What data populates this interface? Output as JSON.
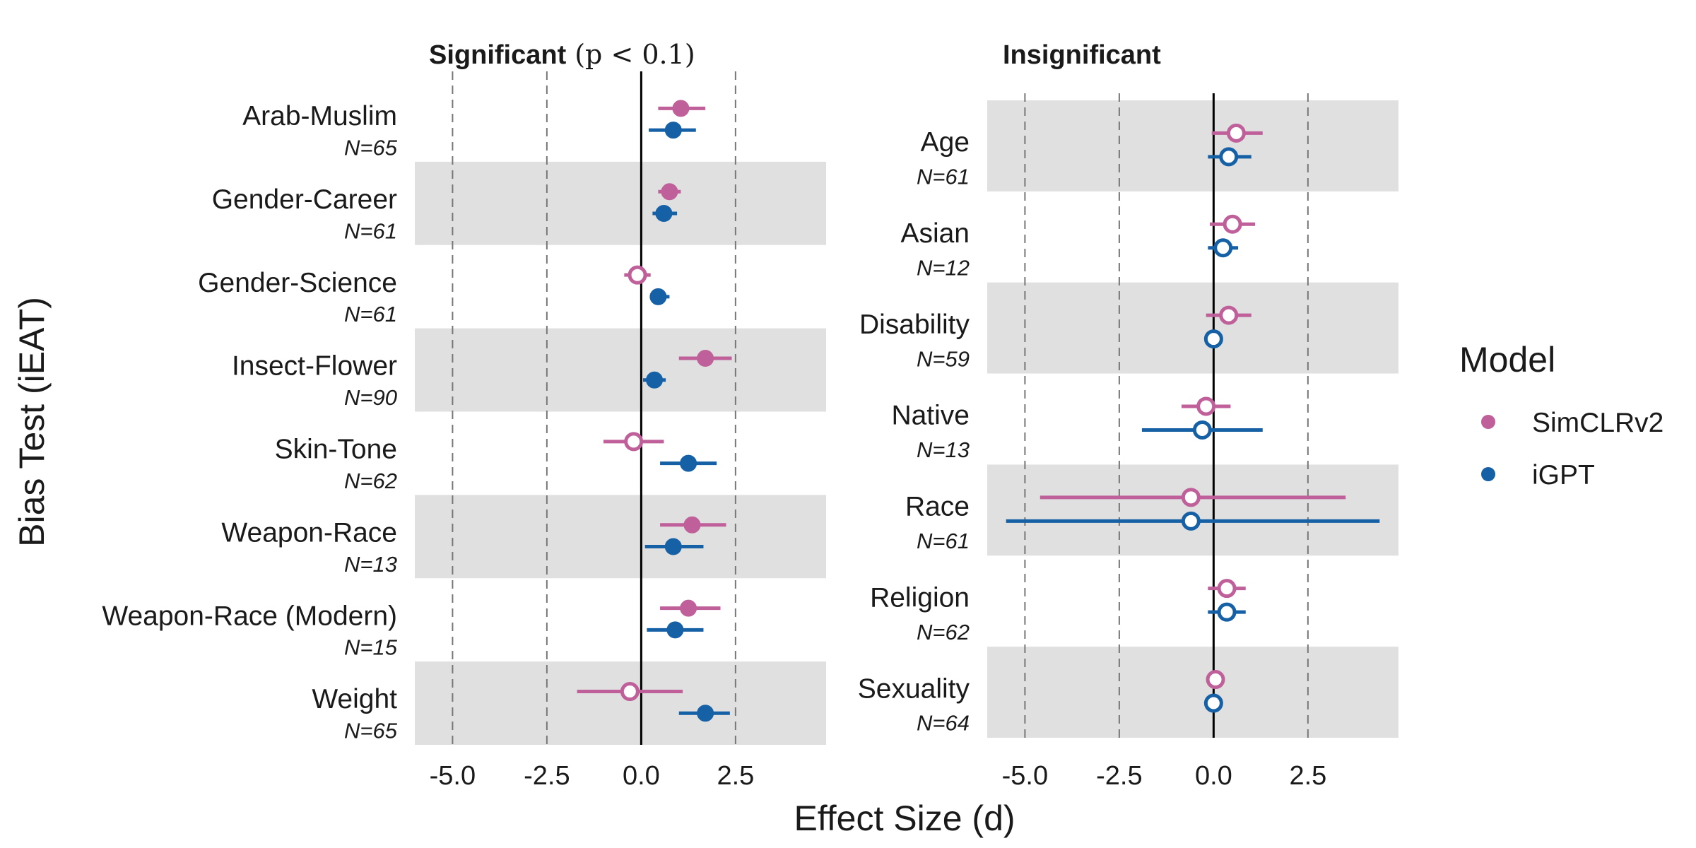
{
  "axis": {
    "ylabel": "Bias Test (iEAT)",
    "xlabel": "Effect Size (d)",
    "xlim": [
      -6.0,
      4.9
    ],
    "xticks": [
      -5.0,
      -2.5,
      0.0,
      2.5
    ],
    "xtick_labels": [
      "-5.0",
      "-2.5",
      "0.0",
      "2.5"
    ]
  },
  "legend": {
    "title": "Model",
    "placement": "right",
    "items": [
      {
        "label": "SimCLRv2",
        "color": "#C0609A"
      },
      {
        "label": "iGPT",
        "color": "#1660A6"
      }
    ]
  },
  "chart_data": [
    {
      "type": "forest",
      "title_bold": "Significant",
      "title_rest": "(p < 0.1)",
      "series": [
        {
          "name": "SimCLRv2",
          "color": "#C0609A"
        },
        {
          "name": "iGPT",
          "color": "#1660A6"
        }
      ],
      "tests": [
        {
          "label": "Arab-Muslim",
          "n": "N=65",
          "SimCLRv2": {
            "d": 1.05,
            "lo": 0.45,
            "hi": 1.7,
            "sig": true
          },
          "iGPT": {
            "d": 0.85,
            "lo": 0.2,
            "hi": 1.45,
            "sig": true
          }
        },
        {
          "label": "Gender-Career",
          "n": "N=61",
          "SimCLRv2": {
            "d": 0.75,
            "lo": 0.45,
            "hi": 1.05,
            "sig": true
          },
          "iGPT": {
            "d": 0.6,
            "lo": 0.3,
            "hi": 0.95,
            "sig": true
          }
        },
        {
          "label": "Gender-Science",
          "n": "N=61",
          "SimCLRv2": {
            "d": -0.1,
            "lo": -0.45,
            "hi": 0.25,
            "sig": false
          },
          "iGPT": {
            "d": 0.45,
            "lo": 0.25,
            "hi": 0.75,
            "sig": true
          }
        },
        {
          "label": "Insect-Flower",
          "n": "N=90",
          "SimCLRv2": {
            "d": 1.7,
            "lo": 1.0,
            "hi": 2.4,
            "sig": true
          },
          "iGPT": {
            "d": 0.35,
            "lo": 0.05,
            "hi": 0.65,
            "sig": true
          }
        },
        {
          "label": "Skin-Tone",
          "n": "N=62",
          "SimCLRv2": {
            "d": -0.2,
            "lo": -1.0,
            "hi": 0.6,
            "sig": false
          },
          "iGPT": {
            "d": 1.25,
            "lo": 0.5,
            "hi": 2.0,
            "sig": true
          }
        },
        {
          "label": "Weapon-Race",
          "n": "N=13",
          "SimCLRv2": {
            "d": 1.35,
            "lo": 0.5,
            "hi": 2.25,
            "sig": true
          },
          "iGPT": {
            "d": 0.85,
            "lo": 0.1,
            "hi": 1.65,
            "sig": true
          }
        },
        {
          "label": "Weapon-Race (Modern)",
          "n": "N=15",
          "SimCLRv2": {
            "d": 1.25,
            "lo": 0.5,
            "hi": 2.1,
            "sig": true
          },
          "iGPT": {
            "d": 0.9,
            "lo": 0.15,
            "hi": 1.65,
            "sig": true
          }
        },
        {
          "label": "Weight",
          "n": "N=65",
          "SimCLRv2": {
            "d": -0.3,
            "lo": -1.7,
            "hi": 1.1,
            "sig": false
          },
          "iGPT": {
            "d": 1.7,
            "lo": 1.0,
            "hi": 2.35,
            "sig": true
          }
        }
      ]
    },
    {
      "type": "forest",
      "title_bold": "Insignificant",
      "title_rest": "",
      "series": [
        {
          "name": "SimCLRv2",
          "color": "#C0609A"
        },
        {
          "name": "iGPT",
          "color": "#1660A6"
        }
      ],
      "tests": [
        {
          "label": "Age",
          "n": "N=61",
          "SimCLRv2": {
            "d": 0.6,
            "lo": -0.05,
            "hi": 1.3,
            "sig": false
          },
          "iGPT": {
            "d": 0.4,
            "lo": -0.15,
            "hi": 1.0,
            "sig": false
          }
        },
        {
          "label": "Asian",
          "n": "N=12",
          "SimCLRv2": {
            "d": 0.5,
            "lo": -0.1,
            "hi": 1.1,
            "sig": false
          },
          "iGPT": {
            "d": 0.25,
            "lo": -0.15,
            "hi": 0.65,
            "sig": false
          }
        },
        {
          "label": "Disability",
          "n": "N=59",
          "SimCLRv2": {
            "d": 0.4,
            "lo": -0.2,
            "hi": 1.0,
            "sig": false
          },
          "iGPT": {
            "d": 0.0,
            "lo": 0.0,
            "hi": 0.0,
            "sig": false
          }
        },
        {
          "label": "Native",
          "n": "N=13",
          "SimCLRv2": {
            "d": -0.2,
            "lo": -0.85,
            "hi": 0.45,
            "sig": false
          },
          "iGPT": {
            "d": -0.3,
            "lo": -1.9,
            "hi": 1.3,
            "sig": false
          }
        },
        {
          "label": "Race",
          "n": "N=61",
          "SimCLRv2": {
            "d": -0.6,
            "lo": -4.6,
            "hi": 3.5,
            "sig": false
          },
          "iGPT": {
            "d": -0.6,
            "lo": -5.5,
            "hi": 4.4,
            "sig": false
          }
        },
        {
          "label": "Religion",
          "n": "N=62",
          "SimCLRv2": {
            "d": 0.35,
            "lo": -0.15,
            "hi": 0.85,
            "sig": false
          },
          "iGPT": {
            "d": 0.35,
            "lo": -0.15,
            "hi": 0.85,
            "sig": false
          }
        },
        {
          "label": "Sexuality",
          "n": "N=64",
          "SimCLRv2": {
            "d": 0.05,
            "lo": 0.05,
            "hi": 0.05,
            "sig": false
          },
          "iGPT": {
            "d": 0.0,
            "lo": 0.0,
            "hi": 0.0,
            "sig": false
          }
        }
      ]
    }
  ]
}
